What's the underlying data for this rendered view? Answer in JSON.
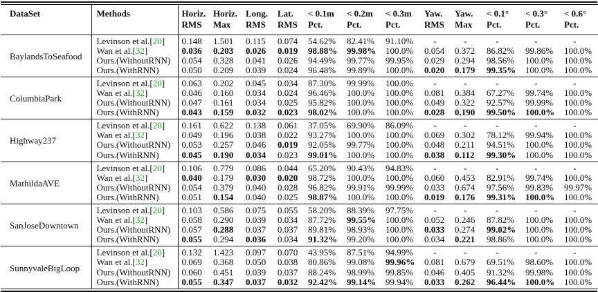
{
  "colors": {
    "citation_green": "#2aa22a",
    "text": "#0d0d0d",
    "rule": "#151515"
  },
  "table": {
    "bracket_open": "[",
    "bracket_close": "]",
    "dataset_header": "DataSet",
    "methods_header": "Methods",
    "cols": [
      {
        "l1": "Horiz.",
        "l2": "RMS"
      },
      {
        "l1": "Horiz.",
        "l2": "Max"
      },
      {
        "l1": "Long.",
        "l2": "RMS"
      },
      {
        "l1": "Lat.",
        "l2": "RMS"
      },
      {
        "l1": "< 0.1m",
        "l2": "Pct."
      },
      {
        "l1": "< 0.2m",
        "l2": "Pct."
      },
      {
        "l1": "< 0.3m",
        "l2": "Pct."
      },
      {
        "l1": "Yaw.",
        "l2": "RMS"
      },
      {
        "l1": "Yaw.",
        "l2": "Max"
      },
      {
        "l1": "< 0.1°",
        "l2": "Pct."
      },
      {
        "l1": "< 0.3°",
        "l2": "Pct."
      },
      {
        "l1": "< 0.6°",
        "l2": "Pct."
      }
    ],
    "groups": [
      {
        "dataset": "BaylandsToSeafood",
        "rows": [
          {
            "method": "Levinson et al.",
            "cite": "20",
            "values": [
              "0.148",
              "1.501",
              "0.115",
              "0.074",
              "54.62%",
              "82.41%",
              "91.10%",
              "-",
              "-",
              "-",
              "-",
              "-"
            ],
            "bold": []
          },
          {
            "method": "Wan et al.",
            "cite": "32",
            "values": [
              "0.036",
              "0.203",
              "0.026",
              "0.019",
              "98.88%",
              "99.98%",
              "100.0%",
              "0.054",
              "0.372",
              "86.82%",
              "99.86%",
              "100.0%"
            ],
            "bold": [
              0,
              1,
              2,
              3,
              4,
              5
            ]
          },
          {
            "method": "Ours.(WithoutRNN)",
            "cite": null,
            "values": [
              "0.054",
              "0.328",
              "0.041",
              "0.026",
              "94.49%",
              "99.77%",
              "99.95%",
              "0.029",
              "0.294",
              "98.56%",
              "100.0%",
              "100.0%"
            ],
            "bold": []
          },
          {
            "method": "Ours.(WithRNN)",
            "cite": null,
            "values": [
              "0.050",
              "0.209",
              "0.039",
              "0.024",
              "96.48%",
              "99.89%",
              "100.0%",
              "0.020",
              "0.179",
              "99.35%",
              "100.0%",
              "100.0%"
            ],
            "bold": [
              7,
              8,
              9
            ]
          }
        ]
      },
      {
        "dataset": "ColumbiaPark",
        "rows": [
          {
            "method": "Levinson et al.",
            "cite": "20",
            "values": [
              "0.063",
              "0.202",
              "0.045",
              "0.034",
              "87.30%",
              "99.99%",
              "100.0%",
              "-",
              "-",
              "-",
              "-",
              "-"
            ],
            "bold": []
          },
          {
            "method": "Wan et al.",
            "cite": "32",
            "values": [
              "0.046",
              "0.160",
              "0.034",
              "0.024",
              "96.46%",
              "100.0%",
              "100.0%",
              "0.081",
              "0.384",
              "67.27%",
              "99.74%",
              "100.0%"
            ],
            "bold": []
          },
          {
            "method": "Ours.(WithoutRNN)",
            "cite": null,
            "values": [
              "0.047",
              "0.161",
              "0.034",
              "0.025",
              "95.82%",
              "100.0%",
              "100.0%",
              "0.049",
              "0.322",
              "92.57%",
              "99.99%",
              "100.0%"
            ],
            "bold": []
          },
          {
            "method": "Ours.(WithRNN)",
            "cite": null,
            "values": [
              "0.043",
              "0.159",
              "0.032",
              "0.023",
              "98.02%",
              "100.0%",
              "100.0%",
              "0.028",
              "0.190",
              "99.50%",
              "100.0%",
              "100.0%"
            ],
            "bold": [
              0,
              1,
              2,
              3,
              4,
              7,
              8,
              9,
              10
            ]
          }
        ]
      },
      {
        "dataset": "Highway237",
        "rows": [
          {
            "method": "Levinson et al.",
            "cite": "20",
            "values": [
              "0.161",
              "0.622",
              "0.138",
              "0.061",
              "37.05%",
              "69.90%",
              "86.09%",
              "-",
              "-",
              "-",
              "-",
              "-"
            ],
            "bold": []
          },
          {
            "method": "Wan et al.",
            "cite": "32",
            "values": [
              "0.049",
              "0.196",
              "0.038",
              "0.022",
              "93.27%",
              "100.0%",
              "100.0%",
              "0.069",
              "0.302",
              "78.12%",
              "99.94%",
              "100.0%"
            ],
            "bold": []
          },
          {
            "method": "Ours.(WithoutRNN)",
            "cite": null,
            "values": [
              "0.053",
              "0.257",
              "0.046",
              "0.019",
              "92.05%",
              "99.77%",
              "100.0%",
              "0.048",
              "0.211",
              "94.51%",
              "100.0%",
              "100.0%"
            ],
            "bold": [
              3
            ]
          },
          {
            "method": "Ours.(WithRNN)",
            "cite": null,
            "values": [
              "0.045",
              "0.190",
              "0.034",
              "0.023",
              "99.01%",
              "100.0%",
              "100.0%",
              "0.038",
              "0.112",
              "99.30%",
              "100.0%",
              "100.0%"
            ],
            "bold": [
              0,
              1,
              2,
              4,
              7,
              8,
              9
            ]
          }
        ]
      },
      {
        "dataset": "MathildaAVE",
        "rows": [
          {
            "method": "Levinson et al.",
            "cite": "20",
            "values": [
              "0.106",
              "0.779",
              "0.086",
              "0.044",
              "65.20%",
              "90.43%",
              "94.83%",
              "-",
              "-",
              "-",
              "-",
              "-"
            ],
            "bold": []
          },
          {
            "method": "Wan et al.",
            "cite": "32",
            "values": [
              "0.040",
              "0.179",
              "0.030",
              "0.020",
              "98.72%",
              "100.0%",
              "100.0%",
              "0.060",
              "0.453",
              "82.91%",
              "99.74%",
              "100.0%"
            ],
            "bold": [
              0,
              2,
              3
            ]
          },
          {
            "method": "Ours.(WithoutRNN)",
            "cite": null,
            "values": [
              "0.054",
              "0.379",
              "0.040",
              "0.028",
              "96.82%",
              "99.91%",
              "99.99%",
              "0.033",
              "0.674",
              "97.56%",
              "99.83%",
              "99.97%"
            ],
            "bold": []
          },
          {
            "method": "Ours.(WithRNN)",
            "cite": null,
            "values": [
              "0.051",
              "0.154",
              "0.040",
              "0.025",
              "98.87%",
              "100.0%",
              "100.0%",
              "0.019",
              "0.176",
              "99.31%",
              "100.0%",
              "100.0%"
            ],
            "bold": [
              1,
              4,
              7,
              8,
              9,
              10
            ]
          }
        ]
      },
      {
        "dataset": "SanJoseDowntown",
        "rows": [
          {
            "method": "Levinson et al.",
            "cite": "20",
            "values": [
              "0.103",
              "0.586",
              "0.075",
              "0.055",
              "58.20%",
              "88.39%",
              "97.75%",
              "-",
              "-",
              "-",
              "-",
              "-"
            ],
            "bold": []
          },
          {
            "method": "Wan et al.",
            "cite": "32",
            "values": [
              "0.058",
              "0.290",
              "0.039",
              "0.034",
              "87.72%",
              "99.55%",
              "100.0%",
              "0.052",
              "0.246",
              "87.82%",
              "100.0%",
              "100.0%"
            ],
            "bold": [
              5
            ]
          },
          {
            "method": "Ours.(WithoutRNN)",
            "cite": null,
            "values": [
              "0.057",
              "0.288",
              "0.037",
              "0.037",
              "89.81%",
              "98.93%",
              "100.0%",
              "0.033",
              "0.274",
              "99.02%",
              "100.0%",
              "100.0%"
            ],
            "bold": [
              1,
              7,
              9
            ]
          },
          {
            "method": "Ours.(WithRNN)",
            "cite": null,
            "values": [
              "0.055",
              "0.294",
              "0.036",
              "0.034",
              "91.32%",
              "99.20%",
              "100.0%",
              "0.034",
              "0.221",
              "98.86%",
              "100.0%",
              "100.0%"
            ],
            "bold": [
              0,
              2,
              4,
              8
            ]
          }
        ]
      },
      {
        "dataset": "SunnyvaleBigLoop",
        "rows": [
          {
            "method": "Levinson et al.",
            "cite": "20",
            "values": [
              "0.132",
              "1.423",
              "0.097",
              "0.070",
              "43.95%",
              "87.51%",
              "94.99%",
              "-",
              "-",
              "-",
              "-",
              "-"
            ],
            "bold": []
          },
          {
            "method": "Wan et al.",
            "cite": "32",
            "values": [
              "0.069",
              "0.368",
              "0.050",
              "0.038",
              "80.86%",
              "99.08%",
              "99.96%",
              "0.081",
              "0.679",
              "69.51%",
              "98.60%",
              "100.0%"
            ],
            "bold": [
              6
            ]
          },
          {
            "method": "Ours.(WithoutRNN)",
            "cite": null,
            "values": [
              "0.060",
              "0.451",
              "0.039",
              "0.037",
              "88.24%",
              "98.99%",
              "99.85%",
              "0.046",
              "0.405",
              "91.32%",
              "99.98%",
              "100.0%"
            ],
            "bold": []
          },
          {
            "method": "Ours.(WithRNN)",
            "cite": null,
            "values": [
              "0.055",
              "0.347",
              "0.037",
              "0.032",
              "92.42%",
              "99.14%",
              "99.94%",
              "0.033",
              "0.262",
              "96.44%",
              "100.0%",
              "100.0%"
            ],
            "bold": [
              0,
              1,
              2,
              3,
              4,
              5,
              7,
              8,
              9,
              10
            ]
          }
        ]
      }
    ]
  }
}
